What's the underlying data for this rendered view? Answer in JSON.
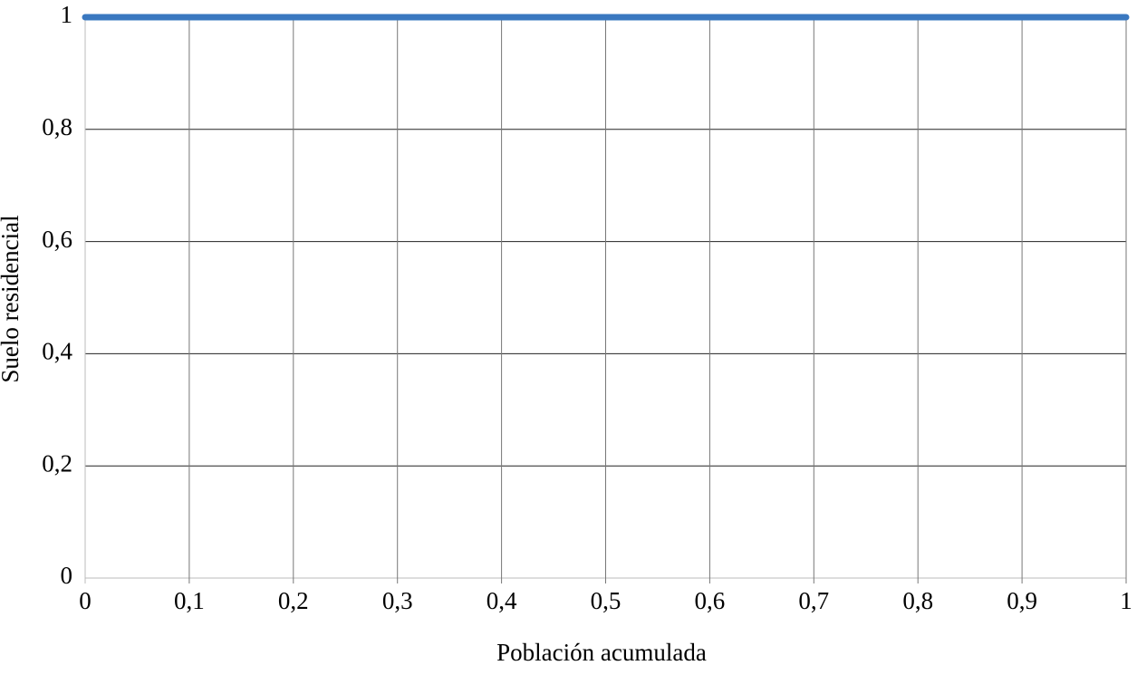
{
  "chart_data": {
    "type": "line",
    "x_label": "Población acumulada",
    "y_label": "Suelo residencial",
    "x": [
      0,
      1
    ],
    "values": [
      1,
      1
    ],
    "color": "#3a78c0",
    "xlim": [
      0,
      1
    ],
    "ylim": [
      0,
      1
    ],
    "xticks": [
      0,
      {
        "value": 0.1,
        "label": "0,1"
      },
      {
        "value": 0.2,
        "label": "0,2"
      },
      {
        "value": 0.3,
        "label": "0,3"
      },
      {
        "value": 0.4,
        "label": "0,4"
      },
      {
        "value": 0.5,
        "label": "0,5"
      },
      {
        "value": 0.6,
        "label": "0,6"
      },
      {
        "value": 0.7,
        "label": "0,7"
      },
      {
        "value": 0.8,
        "label": "0,8"
      },
      {
        "value": 0.9,
        "label": "0,9"
      },
      1
    ],
    "yticks": [
      0,
      {
        "value": 0.2,
        "label": "0,2"
      },
      {
        "value": 0.4,
        "label": "0,4"
      },
      {
        "value": 0.6,
        "label": "0,6"
      },
      {
        "value": 0.8,
        "label": "0,8"
      },
      1
    ],
    "grid": true
  }
}
